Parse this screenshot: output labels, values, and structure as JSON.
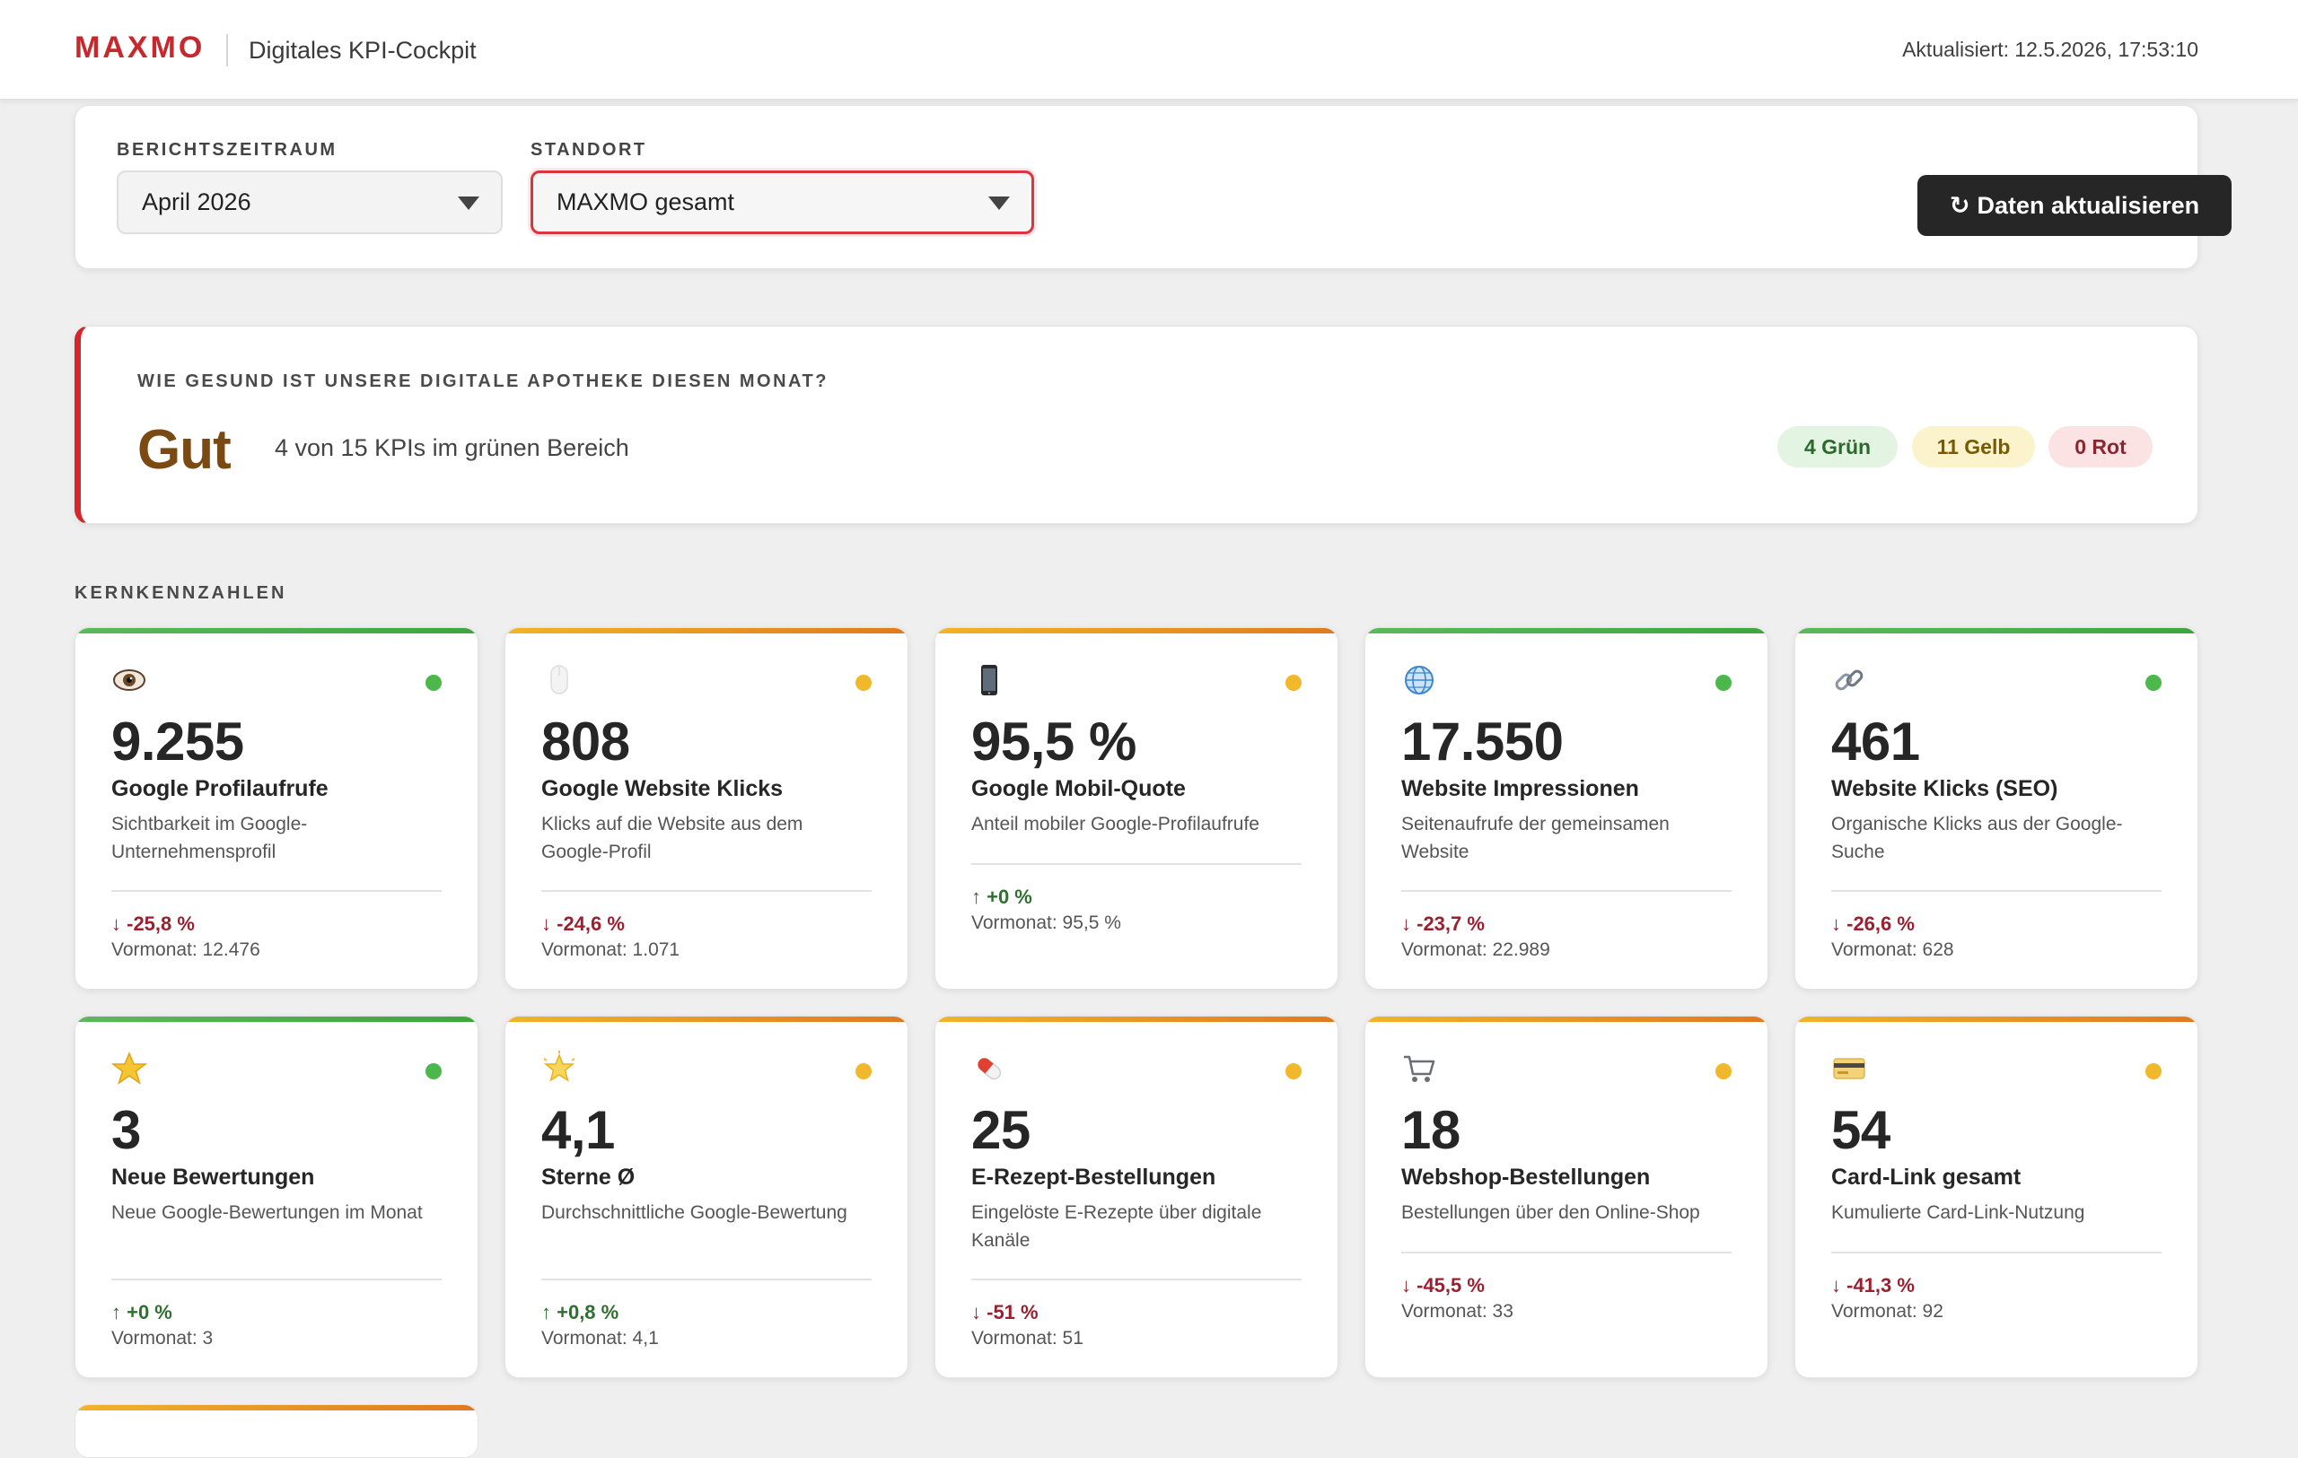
{
  "header": {
    "brand": "MAXMO",
    "title": "Digitales KPI-Cockpit",
    "updated": "Aktualisiert: 12.5.2026, 17:53:10"
  },
  "filters": {
    "period_label": "BERICHTSZEITRAUM",
    "period_value": "April 2026",
    "location_label": "STANDORT",
    "location_value": "MAXMO gesamt",
    "refresh_icon": "↻",
    "refresh_label": "Daten aktualisieren"
  },
  "health": {
    "question": "WIE GESUND IST UNSERE DIGITALE APOTHEKE DIESEN MONAT?",
    "grade": "Gut",
    "description": "4 von 15 KPIs im grünen Bereich",
    "green": "4 Grün",
    "yellow": "11 Gelb",
    "red": "0 Rot",
    "colors": {
      "accent": "#d6252b",
      "grade": "#7a4a12"
    }
  },
  "section_label": "KERNKENNZAHLEN",
  "kpis": [
    {
      "icon": "eye-icon",
      "status": "green",
      "value": "9.255",
      "name": "Google Profilaufrufe",
      "desc": "Sichtbarkeit im Google-Unternehmensprofil",
      "delta": "↓ -25,8 %",
      "trend": "down",
      "prev": "Vormonat: 12.476"
    },
    {
      "icon": "mouse-icon",
      "status": "yellow",
      "value": "808",
      "name": "Google Website Klicks",
      "desc": "Klicks auf die Website aus dem Google-Profil",
      "delta": "↓ -24,6 %",
      "trend": "down",
      "prev": "Vormonat: 1.071"
    },
    {
      "icon": "mobile-phone-icon",
      "status": "yellow",
      "value": "95,5 %",
      "name": "Google Mobil-Quote",
      "desc": "Anteil mobiler Google-Profilaufrufe",
      "delta": "↑ +0 %",
      "trend": "up",
      "prev": "Vormonat: 95,5 %"
    },
    {
      "icon": "globe-icon",
      "status": "green",
      "value": "17.550",
      "name": "Website Impressionen",
      "desc": "Seitenaufrufe der gemeinsamen Website",
      "delta": "↓ -23,7 %",
      "trend": "down",
      "prev": "Vormonat: 22.989"
    },
    {
      "icon": "link-icon",
      "status": "green",
      "value": "461",
      "name": "Website Klicks (SEO)",
      "desc": "Organische Klicks aus der Google-Suche",
      "delta": "↓ -26,6 %",
      "trend": "down",
      "prev": "Vormonat: 628"
    },
    {
      "icon": "star-icon",
      "status": "green",
      "value": "3",
      "name": "Neue Bewertungen",
      "desc": "Neue Google-Bewertungen im Monat",
      "delta": "↑ +0 %",
      "trend": "up",
      "prev": "Vormonat: 3"
    },
    {
      "icon": "glowing-star-icon",
      "status": "yellow",
      "value": "4,1",
      "name": "Sterne Ø",
      "desc": "Durchschnittliche Google-Bewertung",
      "delta": "↑ +0,8 %",
      "trend": "up",
      "prev": "Vormonat: 4,1"
    },
    {
      "icon": "pill-icon",
      "status": "yellow",
      "value": "25",
      "name": "E-Rezept-Bestellungen",
      "desc": "Eingelöste E-Rezepte über digitale Kanäle",
      "delta": "↓ -51 %",
      "trend": "down",
      "prev": "Vormonat: 51"
    },
    {
      "icon": "shopping-cart-icon",
      "status": "yellow",
      "value": "18",
      "name": "Webshop-Bestellungen",
      "desc": "Bestellungen über den Online-Shop",
      "delta": "↓ -45,5 %",
      "trend": "down",
      "prev": "Vormonat: 33"
    },
    {
      "icon": "credit-card-icon",
      "status": "yellow",
      "value": "54",
      "name": "Card-Link gesamt",
      "desc": "Kumulierte Card-Link-Nutzung",
      "delta": "↓ -41,3 %",
      "trend": "down",
      "prev": "Vormonat: 92"
    }
  ]
}
